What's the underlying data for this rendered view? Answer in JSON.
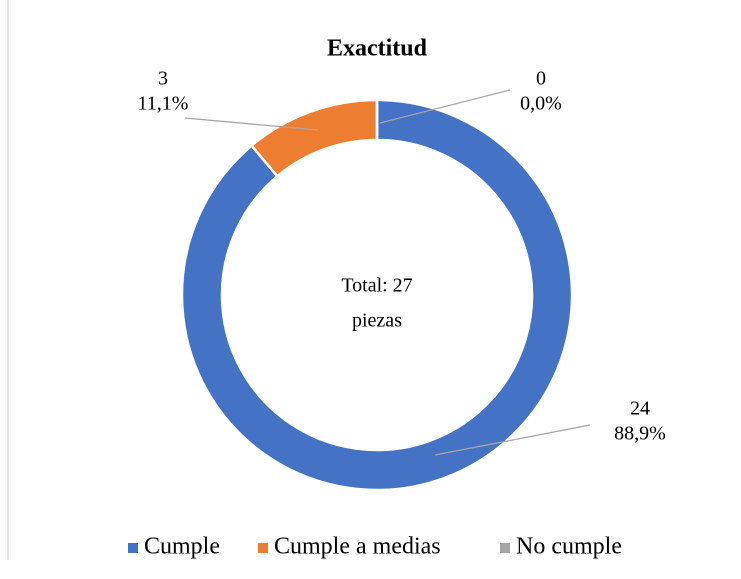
{
  "chart_data": {
    "type": "donut",
    "title": "Exactitud",
    "categories": [
      "Cumple",
      "Cumple a medias",
      "No cumple"
    ],
    "values": [
      24,
      3,
      0
    ],
    "percentages": [
      {
        "value": 88.9,
        "label": "88,9%"
      },
      {
        "value": 11.1,
        "label": "11,1%"
      },
      {
        "value": 0,
        "label": "0,0%"
      }
    ],
    "colors": [
      "#4472c4",
      "#ed7d31",
      "#a5a5a5"
    ],
    "annotations": [
      "Total: 27",
      "piezas"
    ],
    "legend": "bottom"
  }
}
